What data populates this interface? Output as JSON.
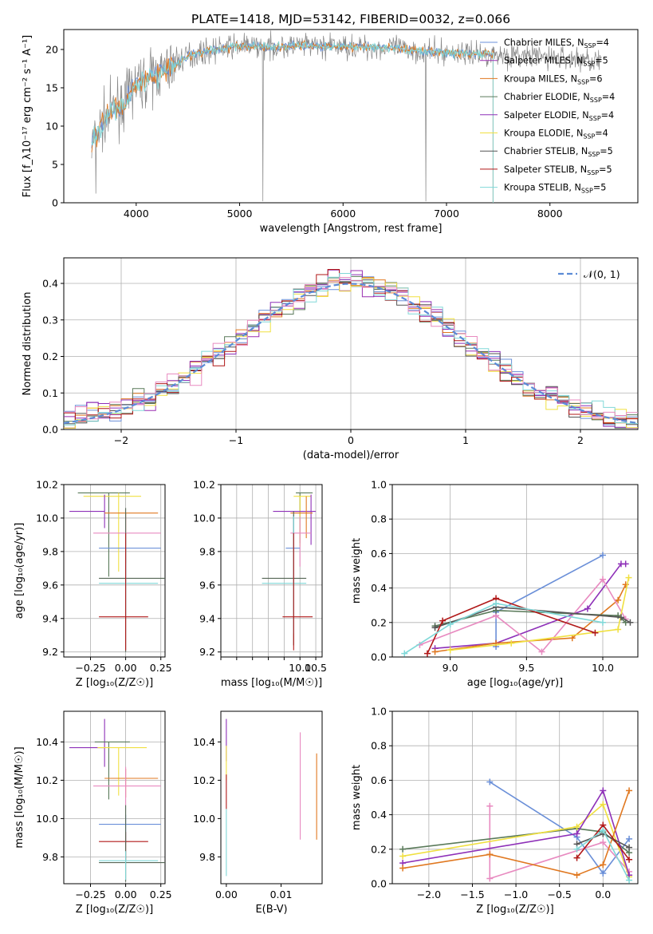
{
  "title": "PLATE=1418, MJD=53142, FIBERID=0032, z=0.066",
  "colors": [
    "#6a8fd8",
    "#9a2fb0",
    "#e07820",
    "#5a7a5a",
    "#8e30b8",
    "#f0e040",
    "#555555",
    "#b01818",
    "#80d8d8"
  ],
  "chart_data": [
    {
      "name": "spectrum",
      "type": "line",
      "xlabel": "wavelength [Angstrom, rest frame]",
      "ylabel": "Flux [f_λ10⁻¹⁷ erg cm⁻² s⁻¹ A⁻¹]",
      "xlim": [
        3300,
        8850
      ],
      "ylim": [
        0,
        22.6
      ],
      "xticks": [
        4000,
        5000,
        6000,
        7000,
        8000
      ],
      "yticks": [
        0,
        5,
        10,
        15,
        20
      ],
      "xticklabels": [
        "4000",
        "5000",
        "6000",
        "7000",
        "8000"
      ],
      "yticklabels": [
        "0",
        "5",
        "10",
        "15",
        "20"
      ],
      "legend_placement": "top-right",
      "legend": [
        {
          "label": "Chabrier MILES, N",
          "sub": "SSP",
          "tail": "=4",
          "color": "#6a8fd8"
        },
        {
          "label": "Salpeter MILES, N",
          "sub": "SSP",
          "tail": "=5",
          "color": "#9a2fb0"
        },
        {
          "label": "Kroupa MILES, N",
          "sub": "SSP",
          "tail": "=6",
          "color": "#e07820"
        },
        {
          "label": "Chabrier ELODIE, N",
          "sub": "SSP",
          "tail": "=4",
          "color": "#5a7a5a"
        },
        {
          "label": "Salpeter ELODIE, N",
          "sub": "SSP",
          "tail": "=4",
          "color": "#8e30b8"
        },
        {
          "label": "Kroupa ELODIE, N",
          "sub": "SSP",
          "tail": "=4",
          "color": "#f0e040"
        },
        {
          "label": "Chabrier STELIB, N",
          "sub": "SSP",
          "tail": "=5",
          "color": "#555555"
        },
        {
          "label": "Salpeter STELIB, N",
          "sub": "SSP",
          "tail": "=5",
          "color": "#b01818"
        },
        {
          "label": "Kroupa STELIB, N",
          "sub": "SSP",
          "tail": "=5",
          "color": "#80d8d8"
        }
      ],
      "continuum": [
        [
          3570,
          7.5
        ],
        [
          3700,
          11
        ],
        [
          3800,
          12.5
        ],
        [
          3900,
          13
        ],
        [
          3950,
          15
        ],
        [
          4100,
          16
        ],
        [
          4300,
          17.5
        ],
        [
          4500,
          19.2
        ],
        [
          4700,
          19.8
        ],
        [
          5000,
          20.5
        ],
        [
          5300,
          20.3
        ],
        [
          5600,
          20.5
        ],
        [
          5900,
          20.4
        ],
        [
          6200,
          20.3
        ],
        [
          6500,
          20.2
        ],
        [
          6800,
          19.7
        ],
        [
          7100,
          19.5
        ],
        [
          7400,
          19.4
        ],
        [
          7700,
          19.2
        ],
        [
          8000,
          19.0
        ],
        [
          8300,
          18.7
        ],
        [
          8500,
          18.5
        ]
      ],
      "model_end": 7450
    },
    {
      "name": "residuals",
      "type": "histogram",
      "xlabel": "(data-model)/error",
      "ylabel": "Normed distribution",
      "xlim": [
        -2.5,
        2.5
      ],
      "ylim": [
        0,
        0.47
      ],
      "xticks": [
        -2,
        -1,
        0,
        1,
        2
      ],
      "xticklabels": [
        "−2",
        "−1",
        "0",
        "1",
        "2"
      ],
      "yticks": [
        0,
        0.1,
        0.2,
        0.3,
        0.4
      ],
      "yticklabels": [
        "0.0",
        "0.1",
        "0.2",
        "0.3",
        "0.4"
      ],
      "grid": true,
      "legend_placement": "top-right",
      "legend_label": "𝒩(0, 1)",
      "bin_width": 0.1
    },
    {
      "name": "age_vs_Z",
      "type": "errorbar",
      "xlabel": "Z [log₁₀(Z/Z☉)]",
      "ylabel": "age  [log₁₀(age/yr)]",
      "xlim": [
        -0.44,
        0.28
      ],
      "ylim": [
        9.17,
        10.2
      ],
      "xticks": [
        -0.25,
        0.0,
        0.25
      ],
      "xticklabels": [
        "−0.25",
        "0.00",
        "0.25"
      ],
      "yticks": [
        9.2,
        9.4,
        9.6,
        9.8,
        10.0,
        10.2
      ],
      "yticklabels": [
        "9.2",
        "9.4",
        "9.6",
        "9.8",
        "10.0",
        "10.2"
      ],
      "grid": true,
      "points": [
        {
          "x": -0.12,
          "y": 10.15,
          "xerr": [
            0.22,
            0.15
          ],
          "yerr": [
            0.5,
            0.0
          ],
          "color": "#5a7a5a"
        },
        {
          "x": -0.05,
          "y": 10.13,
          "xerr": [
            0.25,
            0.16
          ],
          "yerr": [
            0.45,
            0.02
          ],
          "color": "#f0e040"
        },
        {
          "x": -0.15,
          "y": 10.04,
          "xerr": [
            0.25,
            0.0
          ],
          "yerr": [
            0.1,
            0.1
          ],
          "color": "#8e30b8"
        },
        {
          "x": 0.0,
          "y": 10.03,
          "xerr": [
            0.15,
            0.23
          ],
          "yerr": [
            0.3,
            0.0
          ],
          "color": "#e07820"
        },
        {
          "x": 0.0,
          "y": 9.91,
          "xerr": [
            0.23,
            0.25
          ],
          "yerr": [
            0.1,
            0.1
          ],
          "color": "#e88ac0"
        },
        {
          "x": 0.0,
          "y": 9.82,
          "xerr": [
            0.19,
            0.25
          ],
          "yerr": [
            0.2,
            0.0
          ],
          "color": "#6a8fd8"
        },
        {
          "x": 0.0,
          "y": 9.64,
          "xerr": [
            0.19,
            0.29
          ],
          "yerr": [
            0.44,
            0.42
          ],
          "color": "#556655"
        },
        {
          "x": 0.0,
          "y": 9.61,
          "xerr": [
            0.19,
            0.23
          ],
          "yerr": [
            0.2,
            0.3
          ],
          "color": "#80d8d8"
        },
        {
          "x": 0.0,
          "y": 9.41,
          "xerr": [
            0.19,
            0.16
          ],
          "yerr": [
            0.2,
            0.5
          ],
          "color": "#b01818"
        }
      ]
    },
    {
      "name": "age_vs_mass",
      "type": "errorbar",
      "xlabel": "mass [log₁₀(M/M☉)]",
      "ylabel": "",
      "xlim": [
        7.5,
        10.7
      ],
      "ylim": [
        9.17,
        10.2
      ],
      "xticks": [
        7.5,
        8.0,
        8.5,
        9.0,
        9.5,
        10.0,
        10.5
      ],
      "xticklabels": [
        "",
        "",
        "",
        "",
        "",
        "10.0",
        "10.5"
      ],
      "yticks": [
        9.2,
        9.4,
        9.6,
        9.8,
        10.0,
        10.2
      ],
      "yticklabels": [
        "9.2",
        "9.4",
        "9.6",
        "9.8",
        "10.0",
        "10.2"
      ],
      "grid": true,
      "points": [
        {
          "x": 10.0,
          "y": 10.15,
          "xerr": [
            0.13,
            0.4
          ],
          "yerr": [
            0.3,
            0.0
          ],
          "color": "#5a7a5a"
        },
        {
          "x": 10.0,
          "y": 10.13,
          "xerr": [
            0.2,
            0.35
          ],
          "yerr": [
            0.3,
            0.0
          ],
          "color": "#f0e040"
        },
        {
          "x": 10.35,
          "y": 10.04,
          "xerr": [
            1.2,
            0.15
          ],
          "yerr": [
            0.2,
            0.1
          ],
          "color": "#8e30b8"
        },
        {
          "x": 10.2,
          "y": 10.03,
          "xerr": [
            0.5,
            0.2
          ],
          "yerr": [
            0.15,
            0.1
          ],
          "color": "#e07820"
        },
        {
          "x": 10.0,
          "y": 9.91,
          "xerr": [
            0.3,
            0.35
          ],
          "yerr": [
            0.2,
            0.1
          ],
          "color": "#e88ac0"
        },
        {
          "x": 9.8,
          "y": 9.82,
          "xerr": [
            0.25,
            0.2
          ],
          "yerr": [
            0.2,
            0.2
          ],
          "color": "#6a8fd8"
        },
        {
          "x": 9.8,
          "y": 9.64,
          "xerr": [
            1.0,
            0.4
          ],
          "yerr": [
            0.4,
            0.4
          ],
          "color": "#556655"
        },
        {
          "x": 9.8,
          "y": 9.61,
          "xerr": [
            1.0,
            0.4
          ],
          "yerr": [
            0.3,
            0.4
          ],
          "color": "#80d8d8"
        },
        {
          "x": 9.8,
          "y": 9.41,
          "xerr": [
            0.35,
            0.6
          ],
          "yerr": [
            0.2,
            0.5
          ],
          "color": "#b01818"
        }
      ]
    },
    {
      "name": "weights_vs_age",
      "type": "line",
      "xlabel": "age  [log₁₀(age/yr)]",
      "ylabel": "mass weight",
      "xlim": [
        8.62,
        10.23
      ],
      "ylim": [
        0,
        1.0
      ],
      "xticks": [
        9.0,
        9.5,
        10.0
      ],
      "xticklabels": [
        "9.0",
        "9.5",
        "10.0"
      ],
      "yticks": [
        0,
        0.2,
        0.4,
        0.6,
        0.8,
        1.0
      ],
      "yticklabels": [
        "0.0",
        "0.2",
        "0.4",
        "0.6",
        "0.8",
        "1.0"
      ],
      "grid": true,
      "series": [
        {
          "color": "#6a8fd8",
          "x": [
            9.3,
            9.3,
            10.0
          ],
          "y": [
            0.06,
            0.26,
            0.59
          ]
        },
        {
          "color": "#8e30b8",
          "x": [
            8.9,
            9.3,
            9.9,
            10.12,
            10.15
          ],
          "y": [
            0.05,
            0.08,
            0.28,
            0.54,
            0.54
          ]
        },
        {
          "color": "#e07820",
          "x": [
            8.9,
            9.3,
            9.8,
            10.1,
            10.15
          ],
          "y": [
            0.03,
            0.08,
            0.11,
            0.33,
            0.42
          ]
        },
        {
          "color": "#e88ac0",
          "x": [
            8.8,
            9.3,
            9.6,
            10.0,
            10.15
          ],
          "y": [
            0.07,
            0.24,
            0.03,
            0.45,
            0.22
          ]
        },
        {
          "color": "#5a7a5a",
          "x": [
            8.9,
            9.3,
            10.1,
            10.15
          ],
          "y": [
            0.18,
            0.27,
            0.24,
            0.2
          ]
        },
        {
          "color": "#f0e040",
          "x": [
            9.0,
            9.4,
            10.1,
            10.17
          ],
          "y": [
            0.04,
            0.08,
            0.16,
            0.46
          ]
        },
        {
          "color": "#555555",
          "x": [
            8.9,
            9.3,
            10.12,
            10.18
          ],
          "y": [
            0.17,
            0.29,
            0.23,
            0.2
          ]
        },
        {
          "color": "#b01818",
          "x": [
            8.85,
            8.95,
            9.3,
            9.95
          ],
          "y": [
            0.02,
            0.21,
            0.34,
            0.14
          ]
        },
        {
          "color": "#80d8d8",
          "x": [
            8.7,
            9.0,
            9.3,
            10.0
          ],
          "y": [
            0.02,
            0.19,
            0.31,
            0.2
          ]
        }
      ]
    },
    {
      "name": "mass_vs_Z",
      "type": "errorbar",
      "xlabel": "Z [log₁₀(Z/Z☉)]",
      "ylabel": "mass [log₁₀(M/M☉)]",
      "xlim": [
        -0.44,
        0.28
      ],
      "ylim": [
        9.66,
        10.56
      ],
      "xticks": [
        -0.25,
        0.0,
        0.25
      ],
      "xticklabels": [
        "−0.25",
        "0.00",
        "0.25"
      ],
      "yticks": [
        9.8,
        10.0,
        10.2,
        10.4
      ],
      "yticklabels": [
        "9.8",
        "10.0",
        "10.2",
        "10.4"
      ],
      "grid": true,
      "points": [
        {
          "x": -0.15,
          "y": 10.37,
          "xerr": [
            0.25,
            0.0
          ],
          "yerr": [
            0.1,
            0.15
          ],
          "color": "#8e30b8"
        },
        {
          "x": -0.12,
          "y": 10.4,
          "xerr": [
            0.1,
            0.15
          ],
          "yerr": [
            0.3,
            0.0
          ],
          "color": "#5a7a5a"
        },
        {
          "x": -0.05,
          "y": 10.37,
          "xerr": [
            0.15,
            0.2
          ],
          "yerr": [
            0.25,
            0.0
          ],
          "color": "#f0e040"
        },
        {
          "x": 0.0,
          "y": 10.21,
          "xerr": [
            0.15,
            0.23
          ],
          "yerr": [
            0.1,
            0.05
          ],
          "color": "#e07820"
        },
        {
          "x": 0.0,
          "y": 10.17,
          "xerr": [
            0.23,
            0.25
          ],
          "yerr": [
            0.1,
            0.1
          ],
          "color": "#e88ac0"
        },
        {
          "x": 0.0,
          "y": 9.97,
          "xerr": [
            0.19,
            0.25
          ],
          "yerr": [
            0.1,
            0.05
          ],
          "color": "#6a8fd8"
        },
        {
          "x": 0.0,
          "y": 9.88,
          "xerr": [
            0.19,
            0.16
          ],
          "yerr": [
            0.1,
            0.05
          ],
          "color": "#b01818"
        },
        {
          "x": 0.0,
          "y": 9.77,
          "xerr": [
            0.19,
            0.29
          ],
          "yerr": [
            0.1,
            0.3
          ],
          "color": "#556655"
        },
        {
          "x": 0.0,
          "y": 9.78,
          "xerr": [
            0.19,
            0.23
          ],
          "yerr": [
            0.1,
            0.05
          ],
          "color": "#80d8d8"
        }
      ]
    },
    {
      "name": "mass_vs_ebv",
      "type": "errorbar",
      "xlabel": "E(B-V)",
      "ylabel": "",
      "xlim": [
        -0.001,
        0.0175
      ],
      "ylim": [
        9.66,
        10.56
      ],
      "xticks": [
        0.0,
        0.01
      ],
      "xticklabels": [
        "0.00",
        "0.01"
      ],
      "yticks": [
        9.8,
        10.0,
        10.2,
        10.4
      ],
      "yticklabels": [
        "9.8",
        "10.0",
        "10.2",
        "10.4"
      ],
      "grid": false,
      "points": [
        {
          "x": 0.0,
          "y": 10.4,
          "xerr": [
            0,
            0
          ],
          "yerr": [
            0.1,
            0.12
          ],
          "color": "#8e30b8"
        },
        {
          "x": 0.0,
          "y": 10.3,
          "xerr": [
            0,
            0
          ],
          "yerr": [
            0.1,
            0.08
          ],
          "color": "#f0e040"
        },
        {
          "x": 0.0,
          "y": 10.15,
          "xerr": [
            0,
            0
          ],
          "yerr": [
            0.1,
            0.08
          ],
          "color": "#b01818"
        },
        {
          "x": 0.0,
          "y": 9.85,
          "xerr": [
            0,
            0
          ],
          "yerr": [
            0.15,
            0.2
          ],
          "color": "#80d8d8"
        },
        {
          "x": 0.0135,
          "y": 10.17,
          "xerr": [
            0,
            0
          ],
          "yerr": [
            0.28,
            0.28
          ],
          "color": "#e88ac0"
        },
        {
          "x": 0.0165,
          "y": 10.12,
          "xerr": [
            0,
            0
          ],
          "yerr": [
            0.23,
            0.22
          ],
          "color": "#e07820"
        }
      ]
    },
    {
      "name": "weights_vs_Z",
      "type": "line",
      "xlabel": "Z [log₁₀(Z/Z☉)]",
      "ylabel": "mass weight",
      "xlim": [
        -2.42,
        0.4
      ],
      "ylim": [
        0,
        1.0
      ],
      "xticks": [
        -2.0,
        -1.5,
        -1.0,
        -0.5,
        0.0
      ],
      "xticklabels": [
        "−2.0",
        "−1.5",
        "−1.0",
        "−0.5",
        "0.0"
      ],
      "yticks": [
        0,
        0.2,
        0.4,
        0.6,
        0.8,
        1.0
      ],
      "yticklabels": [
        "0.0",
        "0.2",
        "0.4",
        "0.6",
        "0.8",
        "1.0"
      ],
      "grid": true,
      "series": [
        {
          "color": "#6a8fd8",
          "x": [
            -1.3,
            -0.3,
            0.0,
            0.3
          ],
          "y": [
            0.59,
            0.27,
            0.06,
            0.26
          ]
        },
        {
          "color": "#e88ac0",
          "x": [
            -1.3,
            -1.3,
            0.0,
            0.3
          ],
          "y": [
            0.45,
            0.03,
            0.24,
            0.07
          ]
        },
        {
          "color": "#5a7a5a",
          "x": [
            -2.3,
            -0.3,
            0.0,
            0.3
          ],
          "y": [
            0.2,
            0.32,
            0.3,
            0.18
          ]
        },
        {
          "color": "#f0e040",
          "x": [
            -2.3,
            -0.3,
            0.0,
            0.3
          ],
          "y": [
            0.16,
            0.33,
            0.46,
            0.04
          ]
        },
        {
          "color": "#8e30b8",
          "x": [
            -2.3,
            -0.3,
            0.0,
            0.3
          ],
          "y": [
            0.12,
            0.29,
            0.54,
            0.05
          ]
        },
        {
          "color": "#e07820",
          "x": [
            -2.3,
            -1.3,
            -0.3,
            0.0,
            0.3
          ],
          "y": [
            0.09,
            0.17,
            0.05,
            0.11,
            0.54
          ]
        },
        {
          "color": "#555555",
          "x": [
            -0.3,
            0.0,
            0.3
          ],
          "y": [
            0.23,
            0.29,
            0.21
          ]
        },
        {
          "color": "#b01818",
          "x": [
            -0.3,
            0.0,
            0.3
          ],
          "y": [
            0.15,
            0.34,
            0.14
          ]
        },
        {
          "color": "#80d8d8",
          "x": [
            -0.3,
            0.0,
            0.3
          ],
          "y": [
            0.2,
            0.31,
            0.02
          ]
        }
      ]
    }
  ]
}
